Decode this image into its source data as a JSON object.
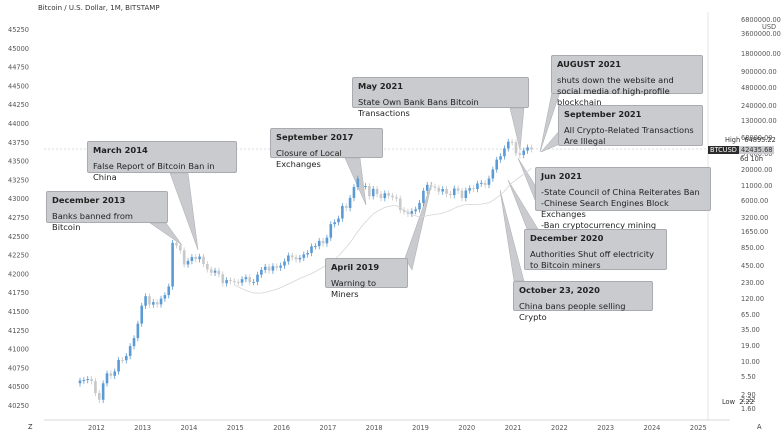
{
  "chart_data": {
    "type": "candlestick",
    "title": "Bitcoin / U.S. Dollar, 1M, BITSTAMP",
    "left_axis": {
      "ticks": [
        45250,
        45000,
        44750,
        44500,
        44250,
        44000,
        43750,
        43500,
        43250,
        43000,
        42750,
        42500,
        42250,
        42000,
        41750,
        41500,
        41250,
        41000,
        40750,
        40500,
        40250
      ]
    },
    "right_axis": {
      "scale": "log",
      "currency": "USD",
      "ticks": [
        "6800000.00",
        "3600000.00",
        "1800000.00",
        "900000.00",
        "480000.00",
        "240000.00",
        "130000.00",
        "68000.00",
        "37000.00",
        "20000.00",
        "11000.00",
        "6000.00",
        "3200.00",
        "1650.00",
        "850.00",
        "450.00",
        "230.00",
        "120.00",
        "65.00",
        "35.00",
        "19.00",
        "10.00",
        "5.50",
        "2.90",
        "2.22",
        "1.60"
      ],
      "top_unit": "USD"
    },
    "x_axis": {
      "ticks": [
        "2012",
        "2013",
        "2014",
        "2015",
        "2016",
        "2017",
        "2018",
        "2019",
        "2020",
        "2021",
        "2022",
        "2023",
        "2024",
        "2025"
      ]
    },
    "series": [
      {
        "kind": "candles",
        "values_price_usd": [
          4.9,
          5.0,
          5.2,
          4.8,
          3.0,
          2.3,
          4.4,
          6.5,
          5.9,
          7.0,
          11.0,
          10.9,
          12.9,
          19.0,
          26.0,
          46.0,
          93.0,
          135.0,
          97.0,
          107.0,
          98.0,
          123.0,
          141.0,
          198.0,
          1100.0,
          1000.0,
          820.0,
          470.0,
          540.0,
          630.0,
          580.0,
          640.0,
          480.0,
          390.0,
          340.0,
          370.0,
          320.0,
          225.0,
          255.0,
          245.0,
          235.0,
          230.0,
          264.0,
          285.0,
          235.0,
          237.0,
          315.0,
          380.0,
          430.0,
          370.0,
          440.0,
          415.0,
          450.0,
          530.0,
          670.0,
          625.0,
          575.0,
          610.0,
          700.0,
          740.0,
          960.0,
          970.0,
          1190.0,
          1080.0,
          1350.0,
          2300.0,
          2480.0,
          2870.0,
          4700.0,
          4340.0,
          6450.0,
          9900.0,
          13800.0,
          10200.0,
          10300.0,
          6900.0,
          9200.0,
          7500.0,
          6400.0,
          7750.0,
          7030.0,
          6600.0,
          6300.0,
          4020.0,
          3750.0,
          3460.0,
          3830.0,
          4100.0,
          5300.0,
          8550.0,
          10800.0,
          10100.0,
          9600.0,
          8290.0,
          9150.0,
          7560.0,
          7200.0,
          9350.0,
          8540.0,
          6430.0,
          8630.0,
          9450.0,
          9140.0,
          11350.0,
          11650.0,
          10780.0,
          13800.0,
          19700.0,
          29000.0,
          33100.0,
          45200.0,
          58800.0,
          57700.0,
          37300.0,
          35000.0,
          41500.0,
          47100.0,
          43800.0
        ]
      },
      {
        "kind": "moving_average",
        "values_price_usd": []
      }
    ],
    "right_price_labels": {
      "high_label": "High",
      "high_value": "64895.22",
      "symbol": "BTCUSD",
      "current_value": "42435.68",
      "countdown": "6d 10h",
      "low_label": "Low",
      "low_value": "2.22"
    },
    "annotations": [
      {
        "date": "December 2013",
        "text": "Banks banned from Bitcoin"
      },
      {
        "date": "March 2014",
        "text": "False Report of Bitcoin Ban in China"
      },
      {
        "date": "September 2017",
        "text": "Closure of Local Exchanges"
      },
      {
        "date": "April 2019",
        "text": "Warning to Miners"
      },
      {
        "date": "May 2021",
        "text": "State Own Bank Bans Bitcoin Transactions"
      },
      {
        "date": "AUGUST 2021",
        "text": "shuts down the website and social media of high-profile blockchain"
      },
      {
        "date": "September 2021",
        "text": "All Crypto-Related Transactions Are Illegal"
      },
      {
        "date": "Jun 2021",
        "text": "-State Council of China Reiterates Ban\n-Chinese Search Engines Block Exchanges\n-Ban cryptocurrency mining"
      },
      {
        "date": "December 2020",
        "text": "Authorities Shut off electricity to Bitcoin miners"
      },
      {
        "date": "October 23, 2020",
        "text": "China bans people selling Crypto"
      }
    ],
    "colors": {
      "up": "#5b9bd5",
      "down": "#c8c8c8",
      "annotation_bg": "#c9cbcf"
    },
    "corner_labels": {
      "bottom_left": "Z",
      "bottom_right": "A"
    }
  }
}
